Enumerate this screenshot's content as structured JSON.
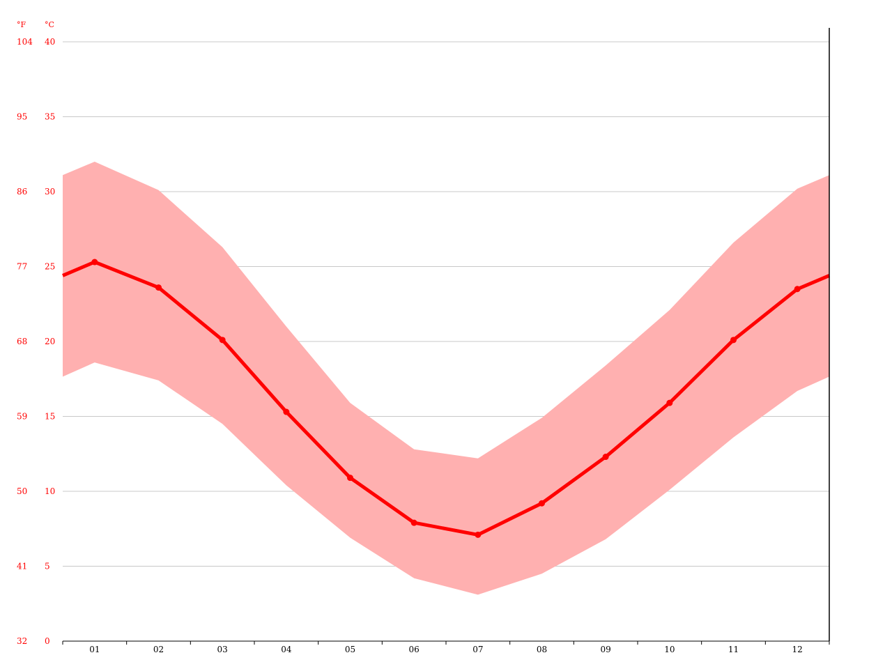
{
  "chart_data": {
    "type": "line",
    "title": "",
    "xlabel": "",
    "ylabel": "",
    "categories": [
      "01",
      "02",
      "03",
      "04",
      "05",
      "06",
      "07",
      "08",
      "09",
      "10",
      "11",
      "12"
    ],
    "series": [
      {
        "role": "mean",
        "values": [
          25.3,
          23.6,
          20.1,
          15.3,
          10.9,
          7.9,
          7.1,
          9.2,
          12.3,
          15.9,
          20.1,
          23.5
        ]
      },
      {
        "role": "max",
        "values": [
          32.0,
          30.1,
          26.3,
          21.0,
          15.9,
          12.8,
          12.2,
          14.9,
          18.4,
          22.1,
          26.6,
          30.2
        ]
      },
      {
        "role": "min",
        "values": [
          18.6,
          17.4,
          14.5,
          10.4,
          6.9,
          4.2,
          3.1,
          4.5,
          6.8,
          10.1,
          13.6,
          16.7
        ]
      }
    ],
    "ylim": [
      0,
      40
    ],
    "yticks_c": [
      "0",
      "5",
      "10",
      "15",
      "20",
      "25",
      "30",
      "35",
      "40"
    ],
    "yticks_f": [
      "32",
      "41",
      "50",
      "59",
      "68",
      "77",
      "86",
      "95",
      "104"
    ],
    "y_unit_left": "°F",
    "y_unit_right": "°C",
    "grid": true,
    "colors": {
      "line": "#ff0000",
      "band": "#ffb0b0",
      "axis_label": "#ff0000",
      "grid": "#c8c8c8"
    }
  }
}
